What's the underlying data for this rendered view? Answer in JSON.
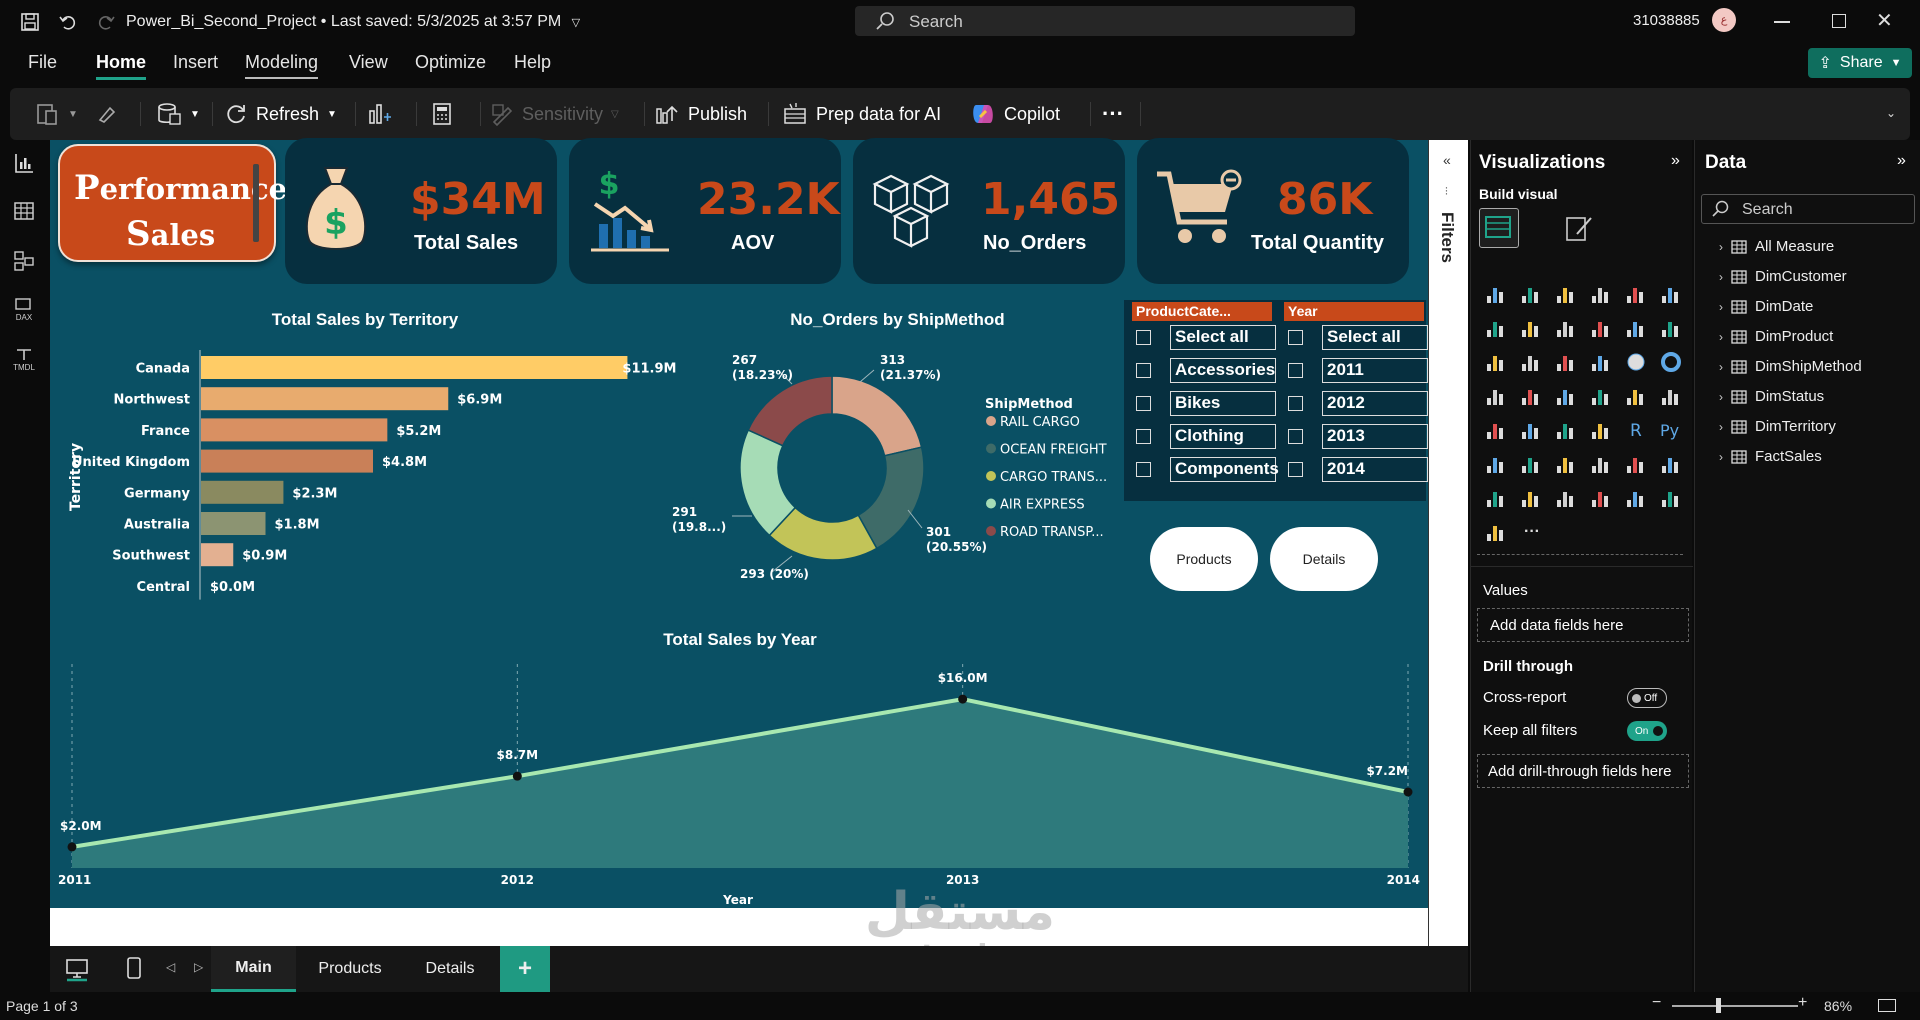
{
  "title_bar": {
    "file_name": "Power_Bi_Second_Project",
    "saved": "Last saved: 5/3/2025 at 3:57 PM",
    "search_placeholder": "Search",
    "user_id": "31038885",
    "avatar_initials": "ع"
  },
  "menu": {
    "items": [
      "File",
      "Home",
      "Insert",
      "Modeling",
      "View",
      "Optimize",
      "Help"
    ],
    "share": "Share"
  },
  "toolbar": {
    "refresh": "Refresh",
    "sensitivity": "Sensitivity",
    "publish": "Publish",
    "prep_data": "Prep data for AI",
    "copilot": "Copilot",
    "more": "···"
  },
  "left_rail": {
    "dax": "DAX",
    "tmdl": "TMDL"
  },
  "report": {
    "brand": {
      "line1_first": "P",
      "line1_rest": "erformance",
      "line2_first": "S",
      "line2_rest": "ales"
    },
    "kpis": [
      {
        "value": "$34M",
        "label": "Total Sales",
        "icon": "money-bag-icon"
      },
      {
        "value": "23.2K",
        "label": "AOV",
        "icon": "chart-dollar-icon"
      },
      {
        "value": "1,465",
        "label": "No_Orders",
        "icon": "boxes-icon"
      },
      {
        "value": "86K",
        "label": "Total Quantity",
        "icon": "cart-icon"
      }
    ],
    "nav_buttons": [
      "Products",
      "Details"
    ]
  },
  "slicers": {
    "category": {
      "header": "ProductCate...",
      "items": [
        "Select all",
        "Accessories",
        "Bikes",
        "Clothing",
        "Components"
      ]
    },
    "year": {
      "header": "Year",
      "items": [
        "Select all",
        "2011",
        "2012",
        "2013",
        "2014"
      ]
    }
  },
  "chart_data": [
    {
      "type": "bar",
      "orientation": "horizontal",
      "title": "Total Sales by Territory",
      "ylabel": "Territory",
      "categories": [
        "Canada",
        "Northwest",
        "France",
        "United Kingdom",
        "Germany",
        "Australia",
        "Southwest",
        "Central"
      ],
      "values": [
        11.9,
        6.9,
        5.2,
        4.8,
        2.3,
        1.8,
        0.9,
        0.0
      ],
      "labels": [
        "$11.9M",
        "$6.9M",
        "$5.2M",
        "$4.8M",
        "$2.3M",
        "$1.8M",
        "$0.9M",
        "$0.0M"
      ],
      "colors": [
        "#ffcc66",
        "#e8ab6e",
        "#d99062",
        "#c98058",
        "#8a8a60",
        "#8c9472",
        "#e3b091",
        "#e3b091"
      ]
    },
    {
      "type": "pie",
      "donut": true,
      "title": "No_Orders by ShipMethod",
      "legend_title": "ShipMethod",
      "categories": [
        "RAIL CARGO",
        "OCEAN FREIGHT",
        "CARGO TRANS...",
        "AIR EXPRESS",
        "ROAD TRANSP..."
      ],
      "values": [
        313,
        301,
        293,
        291,
        267
      ],
      "labels": [
        "313\n(21.37%)",
        "301\n(20.55%)",
        "293 (20%)",
        "291\n(19.8...)",
        "267\n(18.23%)"
      ],
      "colors": [
        "#d9a48a",
        "#3e6b68",
        "#c2c458",
        "#a6dcb6",
        "#8b4a4a"
      ]
    },
    {
      "type": "area",
      "title": "Total Sales by Year",
      "xlabel": "Year",
      "x": [
        "2011",
        "2012",
        "2013",
        "2014"
      ],
      "values": [
        2.0,
        8.7,
        16.0,
        7.2
      ],
      "labels": [
        "$2.0M",
        "$8.7M",
        "$16.0M",
        "$7.2M"
      ],
      "ylim": [
        0,
        18
      ],
      "line_color": "#a8e8b0",
      "fill_color": "#2e7a7c"
    }
  ],
  "viz_pane": {
    "title": "Visualizations",
    "build_visual": "Build visual",
    "values_label": "Values",
    "values_placeholder": "Add data fields here",
    "drill_through": "Drill through",
    "cross_report": "Cross-report",
    "cross_report_state": "Off",
    "keep_filters": "Keep all filters",
    "keep_filters_state": "On",
    "drill_placeholder": "Add drill-through fields here"
  },
  "filters_pane": {
    "label": "Filters"
  },
  "data_pane": {
    "title": "Data",
    "search_placeholder": "Search",
    "tables": [
      "All Measure",
      "DimCustomer",
      "DimDate",
      "DimProduct",
      "DimShipMethod",
      "DimStatus",
      "DimTerritory",
      "FactSales"
    ]
  },
  "tabs": {
    "items": [
      "Main",
      "Products",
      "Details"
    ],
    "add": "+"
  },
  "status": {
    "page": "Page 1 of 3",
    "zoom": "86%"
  },
  "watermark": {
    "arabic": "مستقل",
    "latin": "mostaql.com"
  }
}
